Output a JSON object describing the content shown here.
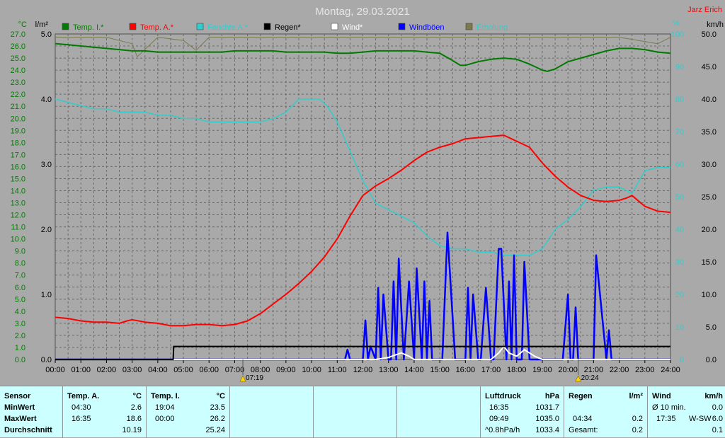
{
  "title": "Montag, 29.03.2021",
  "author": "Jarz Erich",
  "colors": {
    "temp_i": "#007a00",
    "temp_a": "#ff0000",
    "feuchte": "#33cccc",
    "regen": "#000000",
    "wind": "#ffffff",
    "windboeen": "#0000ff",
    "erholung": "#7a7a4a",
    "background": "#a9a9a9"
  },
  "chart_data": {
    "type": "line",
    "x_axis": {
      "range_hours": [
        0,
        24
      ],
      "tick_labels": [
        "00:00",
        "01:00",
        "02:00",
        "03:00",
        "04:00",
        "05:00",
        "06:00",
        "07:00",
        "08:00",
        "09:00",
        "10:00",
        "11:00",
        "12:00",
        "13:00",
        "14:00",
        "15:00",
        "16:00",
        "17:00",
        "18:00",
        "19:00",
        "20:00",
        "21:00",
        "22:00",
        "23:00",
        "24:00"
      ]
    },
    "y_axes": {
      "celsius": {
        "unit": "°C",
        "range": [
          0,
          27
        ],
        "step": 1,
        "tick_labels": [
          "0.0",
          "1.0",
          "2.0",
          "3.0",
          "4.0",
          "5.0",
          "6.0",
          "7.0",
          "8.0",
          "9.0",
          "10.0",
          "11.0",
          "12.0",
          "13.0",
          "14.0",
          "15.0",
          "16.0",
          "17.0",
          "18.0",
          "19.0",
          "20.0",
          "21.0",
          "22.0",
          "23.0",
          "24.0",
          "25.0",
          "26.0",
          "27.0"
        ]
      },
      "rain": {
        "unit": "l/m²",
        "range": [
          0,
          5
        ],
        "tick_labels": [
          "0.0",
          "1.0",
          "2.0",
          "3.0",
          "4.0",
          "5.0"
        ]
      },
      "percent": {
        "unit": "%",
        "range": [
          0,
          100
        ],
        "tick_labels": [
          "0",
          "10",
          "20",
          "30",
          "40",
          "50",
          "60",
          "70",
          "80",
          "90",
          "100"
        ]
      },
      "kmh": {
        "unit": "km/h",
        "range": [
          0,
          50
        ],
        "tick_labels": [
          "0.0",
          "5.0",
          "10.0",
          "15.0",
          "20.0",
          "25.0",
          "30.0",
          "35.0",
          "40.0",
          "45.0",
          "50.0"
        ]
      }
    },
    "grid": true,
    "legend_position": "top",
    "series": [
      {
        "name": "Temp. I.*",
        "axis": "celsius",
        "x": [
          0,
          0.5,
          1,
          1.5,
          2,
          2.5,
          3,
          3.5,
          4,
          4.5,
          5,
          5.5,
          6,
          6.5,
          7,
          7.5,
          8,
          8.5,
          9,
          9.5,
          10,
          10.5,
          11,
          11.5,
          12,
          12.5,
          13,
          13.5,
          14,
          14.5,
          15,
          15.5,
          15.8,
          16,
          16.5,
          17,
          17.5,
          18,
          18.5,
          19,
          19.2,
          19.5,
          20,
          20.5,
          21,
          21.5,
          22,
          22.5,
          23,
          23.5,
          24
        ],
        "y": [
          26.2,
          26.1,
          26.0,
          25.9,
          25.8,
          25.7,
          25.6,
          25.6,
          25.5,
          25.5,
          25.5,
          25.5,
          25.5,
          25.5,
          25.6,
          25.6,
          25.6,
          25.6,
          25.5,
          25.5,
          25.5,
          25.5,
          25.4,
          25.4,
          25.5,
          25.6,
          25.6,
          25.6,
          25.6,
          25.5,
          25.4,
          24.8,
          24.4,
          24.4,
          24.7,
          24.9,
          25.0,
          24.9,
          24.5,
          24.0,
          23.9,
          24.1,
          24.7,
          25.0,
          25.3,
          25.6,
          25.8,
          25.8,
          25.7,
          25.5,
          25.4
        ]
      },
      {
        "name": "Temp. A.*",
        "axis": "celsius",
        "x": [
          0,
          0.5,
          1,
          1.5,
          2,
          2.5,
          2.8,
          3,
          3.5,
          4,
          4.5,
          5,
          5.5,
          6,
          6.5,
          7,
          7.5,
          8,
          8.5,
          9,
          9.5,
          10,
          10.5,
          11,
          11.5,
          12,
          12.5,
          13,
          13.5,
          14,
          14.5,
          15,
          15.5,
          16,
          16.5,
          17,
          17.5,
          18,
          18.5,
          19,
          19.5,
          20,
          20.5,
          21,
          21.5,
          22,
          22.3,
          22.5,
          23,
          23.5,
          24
        ],
        "y": [
          3.5,
          3.4,
          3.2,
          3.1,
          3.1,
          3.0,
          3.2,
          3.3,
          3.1,
          3.0,
          2.8,
          2.8,
          2.9,
          2.9,
          2.8,
          2.9,
          3.2,
          3.8,
          4.6,
          5.4,
          6.3,
          7.3,
          8.5,
          10.0,
          11.9,
          13.6,
          14.4,
          15.0,
          15.7,
          16.5,
          17.2,
          17.6,
          17.9,
          18.3,
          18.4,
          18.5,
          18.6,
          18.1,
          17.6,
          16.3,
          15.2,
          14.3,
          13.6,
          13.2,
          13.1,
          13.2,
          13.4,
          13.6,
          12.7,
          12.3,
          12.2
        ]
      },
      {
        "name": "Feuchte A.*",
        "axis": "percent",
        "x": [
          0,
          0.5,
          1,
          1.5,
          2,
          2.5,
          3,
          3.5,
          4,
          4.5,
          5,
          5.5,
          6,
          6.5,
          7,
          7.5,
          8,
          8.5,
          9,
          9.5,
          10,
          10.3,
          10.6,
          11,
          11.5,
          12,
          12.5,
          13,
          13.5,
          14,
          14.5,
          15,
          15.5,
          16,
          16.5,
          17,
          17.5,
          18,
          18.5,
          19,
          19.5,
          20,
          20.5,
          21,
          21.5,
          22,
          22.5,
          23,
          23.5,
          24
        ],
        "y": [
          80,
          79,
          78,
          77,
          77,
          76,
          76,
          76,
          75,
          75,
          74,
          74,
          73,
          73,
          73,
          73,
          73,
          74,
          76,
          80,
          80,
          80,
          78,
          73,
          64,
          55,
          48,
          46,
          44,
          42,
          38,
          35,
          34,
          34,
          33,
          33,
          32,
          32,
          32,
          34,
          40,
          43,
          47,
          52,
          53,
          53,
          51,
          58,
          59,
          59
        ]
      },
      {
        "name": "Regen*",
        "axis": "rain",
        "x": [
          0,
          4.6,
          4.62,
          4.8,
          5.0,
          5.5,
          24
        ],
        "y": [
          0,
          0,
          0.2,
          0.2,
          0.2,
          0.2,
          0.2
        ]
      },
      {
        "name": "Wind*",
        "axis": "kmh",
        "x": [
          0,
          12.5,
          13,
          13.2,
          13.5,
          13.8,
          14,
          15,
          17,
          17.3,
          17.5,
          17.7,
          18,
          18.3,
          18.5,
          18.7,
          19,
          24
        ],
        "y": [
          0,
          0,
          0.3,
          0.6,
          1.0,
          0.5,
          0,
          0,
          0,
          1.0,
          2.0,
          1.0,
          0.5,
          1.5,
          1.0,
          0.5,
          0,
          0
        ]
      },
      {
        "name": "Windböen",
        "axis": "kmh",
        "x": [
          0,
          11.3,
          11.4,
          11.5,
          12.0,
          12.1,
          12.2,
          12.3,
          12.5,
          12.6,
          12.7,
          12.8,
          13.0,
          13.1,
          13.2,
          13.3,
          13.4,
          13.6,
          13.7,
          13.8,
          14.0,
          14.1,
          14.3,
          14.4,
          14.5,
          14.6,
          14.7,
          15.0,
          15.1,
          15.3,
          15.6,
          15.7,
          15.8,
          16.0,
          16.1,
          16.2,
          16.3,
          16.5,
          16.6,
          16.8,
          17.0,
          17.1,
          17.3,
          17.4,
          17.6,
          17.7,
          17.8,
          17.9,
          18.0,
          18.1,
          18.2,
          18.3,
          18.5,
          18.6,
          18.8,
          19.0,
          19.1,
          19.5,
          19.6,
          19.7,
          19.8,
          20.0,
          20.1,
          20.2,
          20.3,
          20.4,
          20.5,
          20.7,
          20.8,
          20.9,
          21.0,
          21.1,
          21.5,
          21.6,
          21.7,
          21.8,
          21.9,
          22.0,
          22.1,
          24
        ],
        "y": [
          0,
          0,
          1.5,
          0,
          0,
          6.0,
          0,
          2.0,
          0,
          11.0,
          0,
          10.0,
          0,
          0,
          12.0,
          0,
          15.5,
          0,
          6.0,
          12.0,
          0,
          14.0,
          0,
          12.0,
          0,
          9.0,
          0,
          0,
          0,
          19.5,
          0,
          0,
          0,
          0,
          11.0,
          0,
          10.0,
          0,
          0,
          11.0,
          0,
          0,
          17.0,
          17.0,
          0,
          12.0,
          0,
          16.0,
          0,
          0,
          0,
          15.0,
          0,
          0,
          0,
          0,
          0,
          0,
          0,
          0,
          0,
          10.0,
          0,
          0,
          8.0,
          0,
          0,
          0,
          0,
          0,
          0,
          16.0,
          0,
          4.5,
          0,
          0,
          0,
          0,
          0,
          0
        ]
      },
      {
        "name": "Erholung",
        "axis": "percent",
        "x": [
          0,
          2,
          2.5,
          3,
          3.2,
          4,
          5,
          5.5,
          6,
          8,
          10,
          14,
          16,
          20,
          22,
          23.5,
          24
        ],
        "y": [
          99,
          99,
          98,
          97,
          93,
          99,
          98,
          95,
          99,
          99,
          99,
          99,
          99,
          99,
          99,
          97,
          99
        ]
      }
    ],
    "annotations": [
      {
        "text": "07:19",
        "x_hour": 7.32
      },
      {
        "text": "20:24",
        "x_hour": 20.4
      }
    ]
  },
  "table": {
    "sensor": {
      "header": "Sensor",
      "rows": [
        "MinWert",
        "MaxWert",
        "Durchschnitt"
      ]
    },
    "temp_a": {
      "header": "Temp. A.",
      "unit": "°C",
      "min_time": "04:30",
      "min": "2.6",
      "max_time": "16:35",
      "max": "18.6",
      "avg": "10.19"
    },
    "temp_i": {
      "header": "Temp. I.",
      "unit": "°C",
      "min_time": "19:04",
      "min": "23.5",
      "max_time": "00:00",
      "max": "26.2",
      "avg": "25.24"
    },
    "luftdruck": {
      "header": "Luftdruck",
      "unit": "hPa",
      "r1_label": "16:35",
      "r1": "1031.7",
      "r2_label": "09:49",
      "r2": "1035.0",
      "r3_label": "^0.8hPa/h",
      "r3": "1033.4"
    },
    "regen": {
      "header": "Regen",
      "unit": "l/m²",
      "r2_label": "04:34",
      "r2": "0.2",
      "r3_label": "Gesamt:",
      "r3": "0.2"
    },
    "wind": {
      "header": "Wind",
      "unit": "km/h",
      "r1_label": "Ø 10 min.",
      "r1": "0.0",
      "r2_label": "17:35",
      "r2_mid": "W-SW",
      "r2": "6.0",
      "r3": "0.1"
    }
  }
}
